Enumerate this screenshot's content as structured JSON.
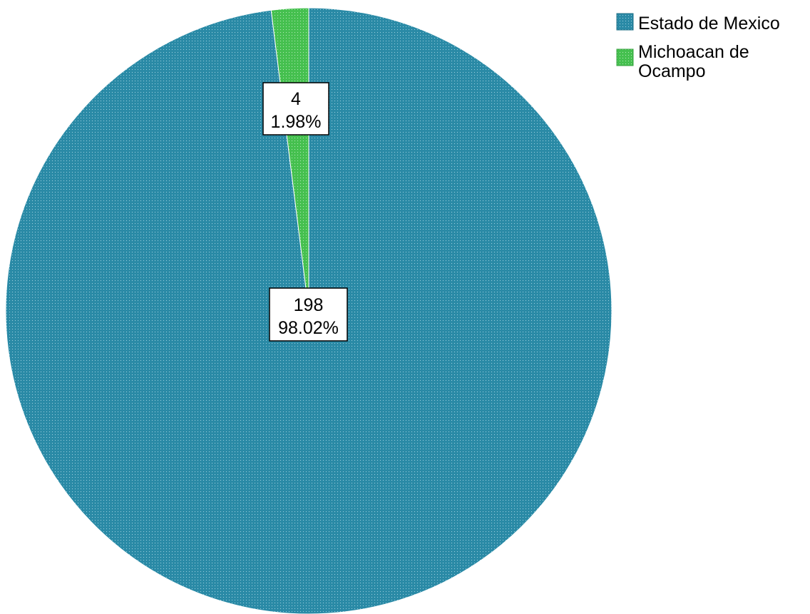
{
  "chart_data": {
    "type": "pie",
    "title": "",
    "slices": [
      {
        "name": "Estado de Mexico",
        "value": 198,
        "percent_label": "98.02%",
        "color": "#2a8aa6",
        "dot_color": "#9fd0df"
      },
      {
        "name": "Michoacan de Ocampo",
        "value": 4,
        "percent_label": "1.98%",
        "color": "#45c04f",
        "dot_color": "#b7eab9"
      }
    ],
    "legend": {
      "placement": "top-right",
      "entries": [
        {
          "lines": [
            "Estado de Mexico"
          ]
        },
        {
          "lines": [
            "Michoacan de",
            "Ocampo"
          ]
        }
      ]
    },
    "data_labels": [
      {
        "value_text": "198",
        "percent_text": "98.02%"
      },
      {
        "value_text": "4",
        "percent_text": "1.98%"
      }
    ]
  }
}
